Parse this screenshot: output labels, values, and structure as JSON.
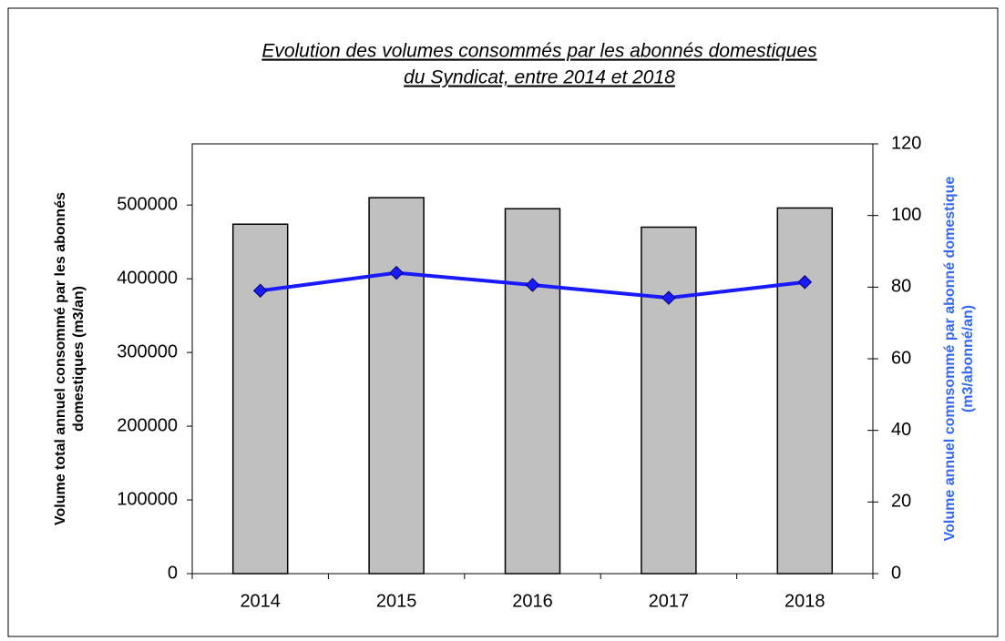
{
  "chart_data": {
    "type": "bar-line",
    "title": [
      "Evolution des volumes consommés par les abonnés domestiques",
      "du Syndicat, entre 2014 et 2018"
    ],
    "y_label": [
      "Volume total annuel consommé  par les abonnés",
      "domestiques (m3/an)"
    ],
    "y2_label": [
      "Volume annuel comnsommé  par abonné domestique",
      "(m3/abonné/an)"
    ],
    "categories": [
      "2014",
      "2015",
      "2016",
      "2017",
      "2018"
    ],
    "series": [
      {
        "type": "bar",
        "color": "#c0c0c0",
        "values": [
          474000,
          510000,
          495000,
          470000,
          496000
        ]
      },
      {
        "type": "line",
        "axis": "y2",
        "color": "#1a1aff",
        "values": [
          79,
          84,
          80.6,
          77,
          81.4
        ]
      }
    ],
    "ylim": [
      0,
      583000
    ],
    "yticks": [
      0,
      100000,
      200000,
      300000,
      400000,
      500000
    ],
    "y2lim": [
      0,
      120
    ],
    "y2ticks": [
      0,
      20,
      40,
      60,
      80,
      100,
      120
    ],
    "y2_label_color": "#3366ff"
  }
}
